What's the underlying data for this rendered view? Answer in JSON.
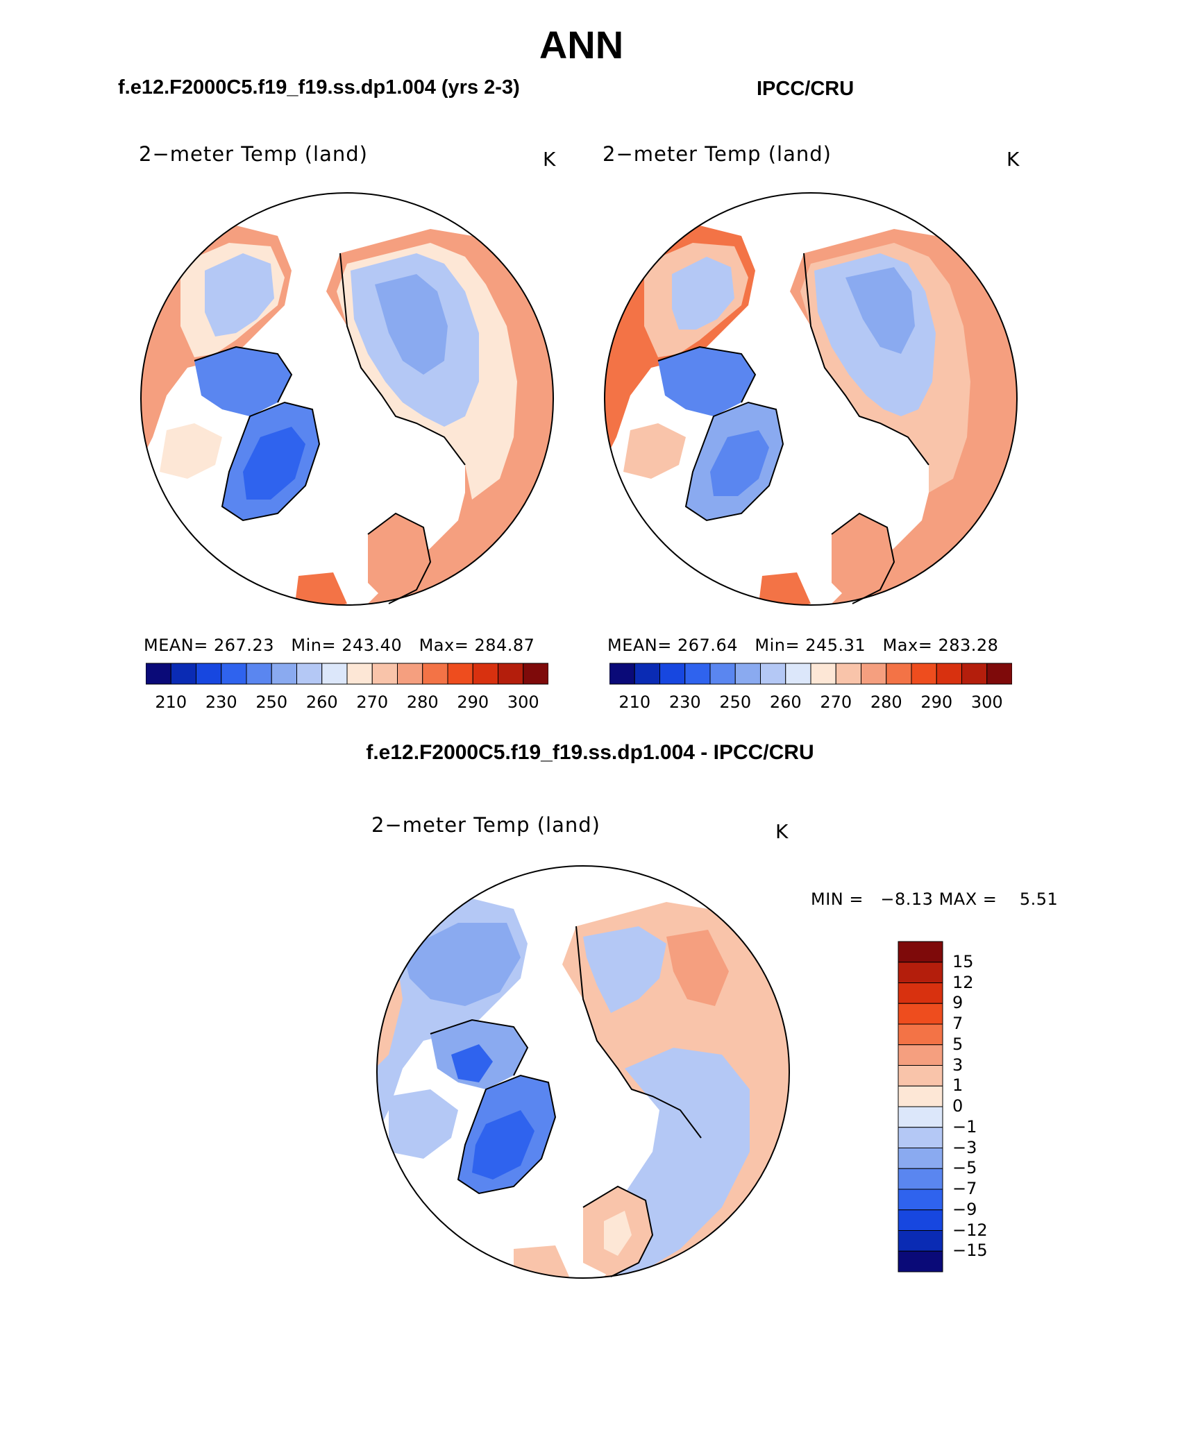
{
  "title": "ANN",
  "panels": [
    {
      "heading": "f.e12.F2000C5.f19_f19.ss.dp1.004 (yrs 2-3)",
      "variable": "2−meter Temp (land)",
      "units": "K",
      "stats": {
        "mean_label": "MEAN=",
        "mean": "267.23",
        "min_label": "Min=",
        "min": "243.40",
        "max_label": "Max=",
        "max": "284.87"
      }
    },
    {
      "heading": "IPCC/CRU",
      "variable": "2−meter Temp (land)",
      "units": "K",
      "stats": {
        "mean_label": "MEAN=",
        "mean": "267.64",
        "min_label": "Min=",
        "min": "245.31",
        "max_label": "Max=",
        "max": "283.28"
      }
    }
  ],
  "colorbar_abs": {
    "ticks": [
      "210",
      "230",
      "250",
      "260",
      "270",
      "280",
      "290",
      "300"
    ],
    "colors": [
      "#0a0a78",
      "#0a2bb4",
      "#1747e0",
      "#2f63ee",
      "#5a86f0",
      "#8aaaf0",
      "#b4c8f5",
      "#dce7fa",
      "#fde7d6",
      "#f9c4aa",
      "#f59f7f",
      "#f37346",
      "#ee4d1e",
      "#d8310f",
      "#b41e0c",
      "#7e0a0a"
    ]
  },
  "diff_panel": {
    "heading": "f.e12.F2000C5.f19_f19.ss.dp1.004 - IPCC/CRU",
    "variable": "2−meter Temp (land)",
    "units": "K",
    "minmax": {
      "min_label": "MIN =",
      "min": "−8.13",
      "max_label": "MAX =",
      "max": "5.51"
    },
    "colorbar": {
      "labels": [
        "15",
        "12",
        "9",
        "7",
        "5",
        "3",
        "1",
        "0",
        "−1",
        "−3",
        "−5",
        "−7",
        "−9",
        "−12",
        "−15"
      ],
      "colors": [
        "#7e0a0a",
        "#b41e0c",
        "#d8310f",
        "#ee4d1e",
        "#f37346",
        "#f59f7f",
        "#f9c4aa",
        "#fde7d6",
        "#dce7fa",
        "#b4c8f5",
        "#8aaaf0",
        "#5a86f0",
        "#2f63ee",
        "#1747e0",
        "#0a2bb4",
        "#0a0a78"
      ]
    }
  },
  "map": {
    "background": "#ffffff",
    "coastline_color": "#000000"
  }
}
